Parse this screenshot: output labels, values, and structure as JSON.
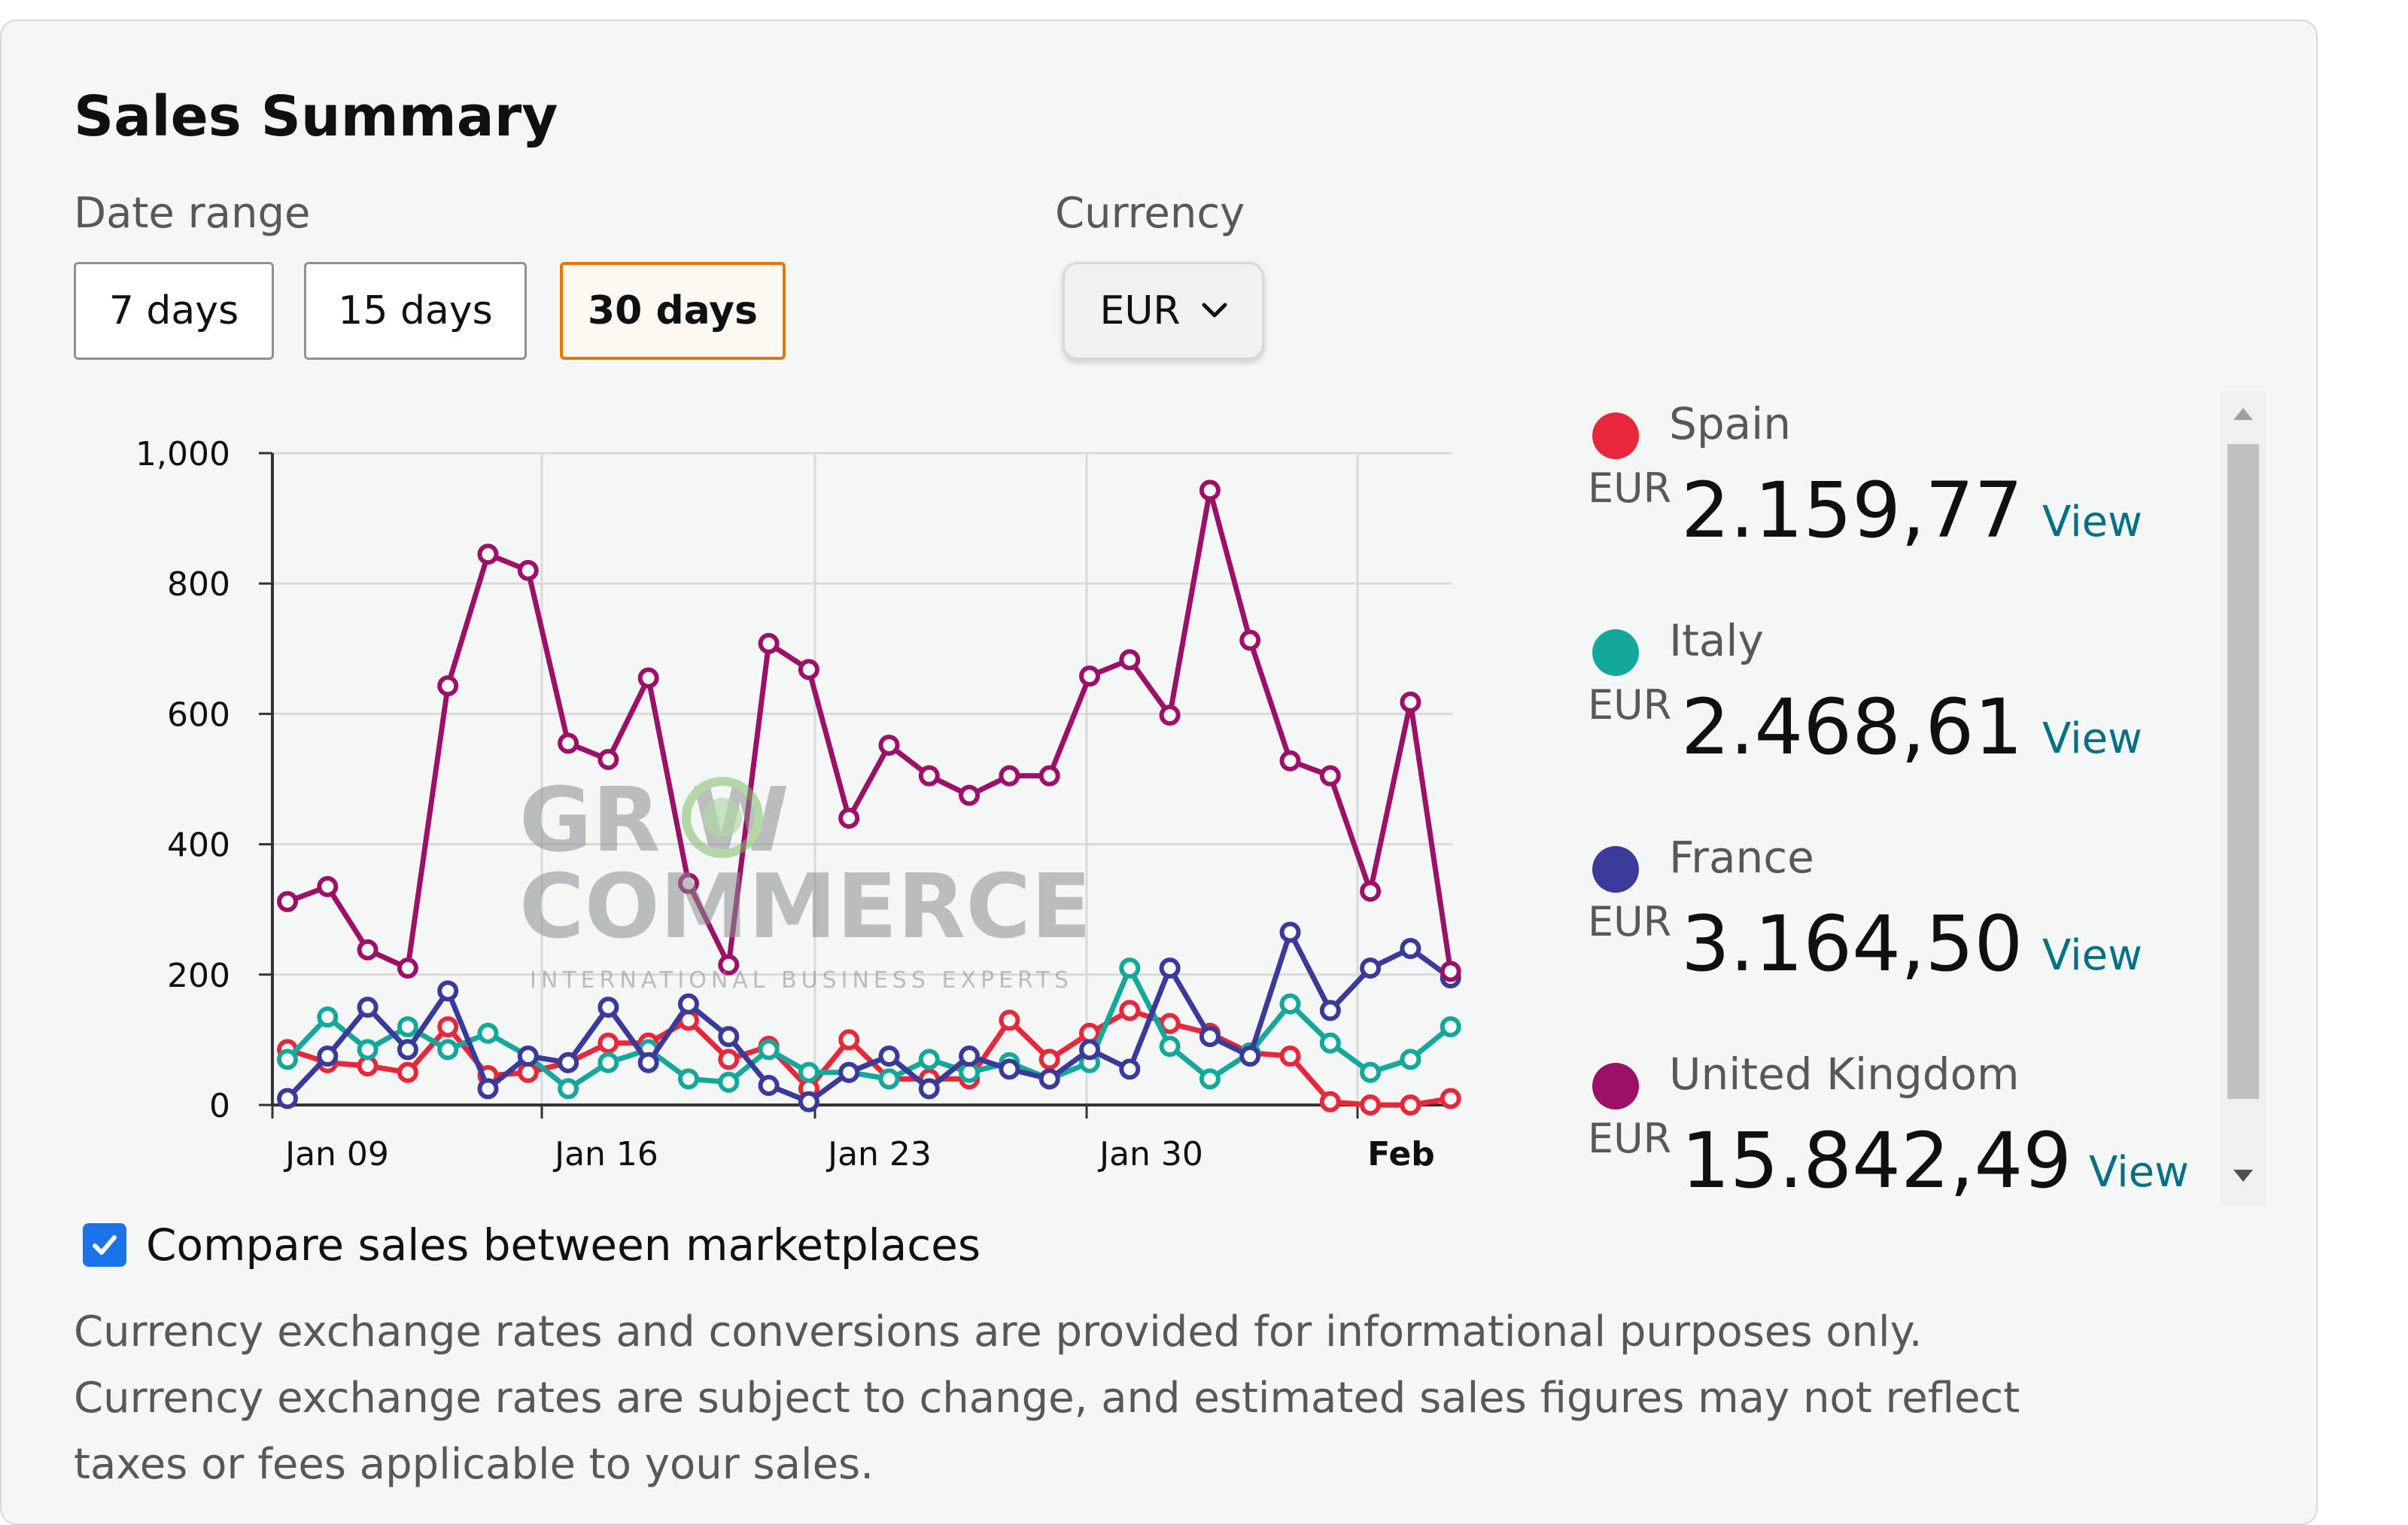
{
  "title": "Sales Summary",
  "date_range": {
    "label": "Date range",
    "options": [
      "7 days",
      "15 days",
      "30 days"
    ],
    "selected": "30 days"
  },
  "currency": {
    "label": "Currency",
    "selected": "EUR"
  },
  "chart_data": {
    "type": "line",
    "x": [
      "Jan 08",
      "Jan 09",
      "Jan 10",
      "Jan 11",
      "Jan 12",
      "Jan 13",
      "Jan 14",
      "Jan 15",
      "Jan 16",
      "Jan 17",
      "Jan 18",
      "Jan 19",
      "Jan 20",
      "Jan 21",
      "Jan 22",
      "Jan 23",
      "Jan 24",
      "Jan 25",
      "Jan 26",
      "Jan 27",
      "Jan 28",
      "Jan 29",
      "Jan 30",
      "Jan 31",
      "Feb 01",
      "Feb 02",
      "Feb 03",
      "Feb 04",
      "Feb 05",
      "Feb 06"
    ],
    "xticks": [
      "Jan 09",
      "Jan 16",
      "Jan 23",
      "Jan 30",
      "Feb"
    ],
    "yticks": [
      "0",
      "200",
      "400",
      "600",
      "800",
      "1,000"
    ],
    "ylim": [
      0,
      1000
    ],
    "grid": true,
    "series": [
      {
        "name": "United Kingdom",
        "color": "#9c1068",
        "values": [
          312,
          335,
          238,
          210,
          643,
          845,
          820,
          555,
          530,
          655,
          340,
          215,
          708,
          668,
          440,
          552,
          505,
          475,
          505,
          505,
          658,
          683,
          598,
          943,
          713,
          528,
          505,
          328,
          618,
          205
        ]
      },
      {
        "name": "France",
        "color": "#3a3a9a",
        "values": [
          10,
          75,
          150,
          85,
          175,
          25,
          75,
          65,
          150,
          65,
          155,
          105,
          30,
          5,
          50,
          75,
          25,
          75,
          55,
          40,
          85,
          55,
          210,
          105,
          75,
          265,
          145,
          210,
          240,
          195
        ]
      },
      {
        "name": "Italy",
        "color": "#14a89a",
        "values": [
          70,
          135,
          85,
          120,
          85,
          110,
          75,
          25,
          65,
          85,
          40,
          35,
          85,
          50,
          50,
          40,
          70,
          50,
          65,
          40,
          65,
          210,
          90,
          40,
          80,
          155,
          95,
          50,
          70,
          120
        ]
      },
      {
        "name": "Spain",
        "color": "#e8283a",
        "values": [
          85,
          65,
          60,
          50,
          120,
          45,
          50,
          65,
          95,
          95,
          130,
          70,
          90,
          25,
          100,
          40,
          40,
          40,
          130,
          70,
          110,
          145,
          125,
          110,
          80,
          75,
          5,
          0,
          0,
          10
        ]
      }
    ]
  },
  "marketplaces": [
    {
      "name": "Spain",
      "currency": "EUR",
      "value": "2.159,77",
      "link": "View",
      "color": "#e8283a"
    },
    {
      "name": "Italy",
      "currency": "EUR",
      "value": "2.468,61",
      "link": "View",
      "color": "#14a89a"
    },
    {
      "name": "France",
      "currency": "EUR",
      "value": "3.164,50",
      "link": "View",
      "color": "#3a3a9a"
    },
    {
      "name": "United Kingdom",
      "currency": "EUR",
      "value": "15.842,49",
      "link": "View",
      "color": "#9c1068"
    }
  ],
  "compare": {
    "label": "Compare sales between marketplaces",
    "checked": true
  },
  "disclaimer": "Currency exchange rates and conversions are provided for informational purposes only. Currency exchange rates are subject to change, and estimated sales figures may not reflect taxes or fees applicable to your sales.",
  "watermark": {
    "line1": "GR W",
    "line2": "COMMERCE",
    "tagline": "INTERNATIONAL BUSINESS EXPERTS"
  }
}
